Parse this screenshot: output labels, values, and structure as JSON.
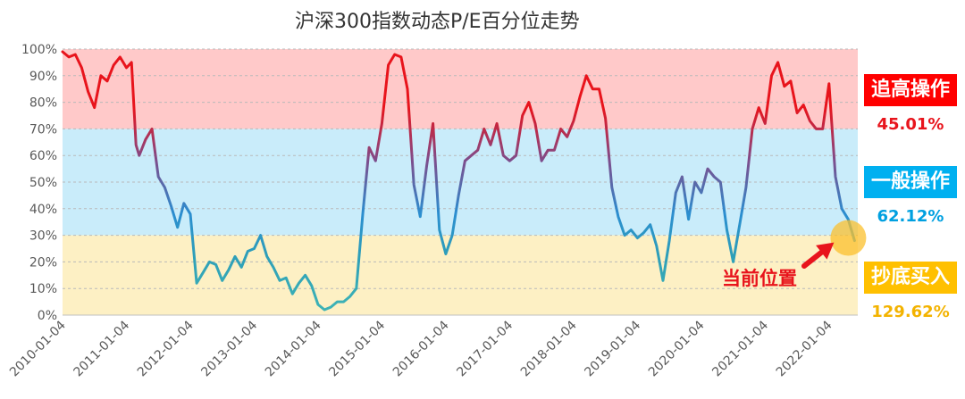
{
  "chart_data": {
    "type": "line",
    "title": "沪深300指数动态P/E百分位走势",
    "xlabel": "",
    "ylabel": "",
    "ylim": [
      0,
      100
    ],
    "x_ticks": [
      "2010-01-04",
      "2011-01-04",
      "2012-01-04",
      "2013-01-04",
      "2014-01-04",
      "2015-01-04",
      "2016-01-04",
      "2017-01-04",
      "2018-01-04",
      "2019-01-04",
      "2020-01-04",
      "2021-01-04",
      "2022-01-04"
    ],
    "y_ticks": [
      "0%",
      "10%",
      "20%",
      "30%",
      "40%",
      "50%",
      "60%",
      "70%",
      "80%",
      "90%",
      "100%"
    ],
    "bands": [
      {
        "from": 70,
        "to": 100,
        "color": "#ffc9c9"
      },
      {
        "from": 30,
        "to": 70,
        "color": "#c9ecfa"
      },
      {
        "from": 0,
        "to": 30,
        "color": "#fdf0c4"
      }
    ],
    "series": [
      {
        "x": [
          2010.0,
          2010.1,
          2010.2,
          2010.3,
          2010.4,
          2010.5,
          2010.6,
          2010.7,
          2010.8,
          2010.9,
          2011.0,
          2011.08,
          2011.15,
          2011.2,
          2011.3,
          2011.4,
          2011.5,
          2011.6,
          2011.7,
          2011.8,
          2011.9,
          2012.0,
          2012.1,
          2012.2,
          2012.3,
          2012.4,
          2012.5,
          2012.6,
          2012.7,
          2012.8,
          2012.9,
          2013.0,
          2013.1,
          2013.2,
          2013.3,
          2013.4,
          2013.5,
          2013.6,
          2013.7,
          2013.8,
          2013.9,
          2014.0,
          2014.1,
          2014.2,
          2014.3,
          2014.4,
          2014.5,
          2014.6,
          2014.7,
          2014.8,
          2014.9,
          2015.0,
          2015.1,
          2015.2,
          2015.3,
          2015.4,
          2015.5,
          2015.6,
          2015.7,
          2015.8,
          2015.9,
          2016.0,
          2016.1,
          2016.2,
          2016.3,
          2016.4,
          2016.5,
          2016.6,
          2016.7,
          2016.8,
          2016.9,
          2017.0,
          2017.1,
          2017.2,
          2017.3,
          2017.4,
          2017.5,
          2017.6,
          2017.7,
          2017.8,
          2017.9,
          2018.0,
          2018.1,
          2018.2,
          2018.3,
          2018.4,
          2018.5,
          2018.6,
          2018.7,
          2018.8,
          2018.9,
          2019.0,
          2019.1,
          2019.2,
          2019.3,
          2019.4,
          2019.5,
          2019.6,
          2019.7,
          2019.8,
          2019.9,
          2020.0,
          2020.1,
          2020.2,
          2020.3,
          2020.4,
          2020.5,
          2020.6,
          2020.7,
          2020.8,
          2020.9,
          2021.0,
          2021.1,
          2021.2,
          2021.3,
          2021.4,
          2021.5,
          2021.6,
          2021.7,
          2021.8,
          2021.9,
          2022.0,
          2022.1,
          2022.2,
          2022.3,
          2022.4
        ],
        "values": [
          99,
          97,
          98,
          93,
          84,
          78,
          90,
          88,
          94,
          97,
          93,
          95,
          64,
          60,
          66,
          70,
          52,
          48,
          41,
          33,
          42,
          38,
          12,
          16,
          20,
          19,
          13,
          17,
          22,
          18,
          24,
          25,
          30,
          22,
          18,
          13,
          14,
          8,
          12,
          15,
          11,
          4,
          2,
          3,
          5,
          5,
          7,
          10,
          38,
          63,
          58,
          72,
          94,
          98,
          97,
          85,
          49,
          37,
          56,
          72,
          32,
          23,
          30,
          45,
          58,
          60,
          62,
          70,
          64,
          72,
          60,
          58,
          60,
          75,
          80,
          72,
          58,
          62,
          62,
          70,
          67,
          73,
          82,
          90,
          85,
          85,
          74,
          48,
          37,
          30,
          32,
          29,
          31,
          34,
          26,
          13,
          28,
          46,
          52,
          36,
          50,
          46,
          55,
          52,
          50,
          32,
          20,
          34,
          48,
          70,
          78,
          72,
          90,
          95,
          86,
          88,
          76,
          79,
          73,
          70,
          70,
          87,
          52,
          40,
          36,
          28
        ]
      }
    ],
    "legend": [
      {
        "label": "追高操作",
        "value": "45.01%",
        "color": "#ff0000",
        "value_color": "#e8141c"
      },
      {
        "label": "一般操作",
        "value": "62.12%",
        "color": "#00b0f0",
        "value_color": "#00a0e0"
      },
      {
        "label": "抄底买入",
        "value": "129.62%",
        "color": "#ffc000",
        "value_color": "#f3b300"
      }
    ],
    "annotation": "当前位置",
    "marker_color": "#fbc02d",
    "arrow_color": "#e8141c"
  }
}
